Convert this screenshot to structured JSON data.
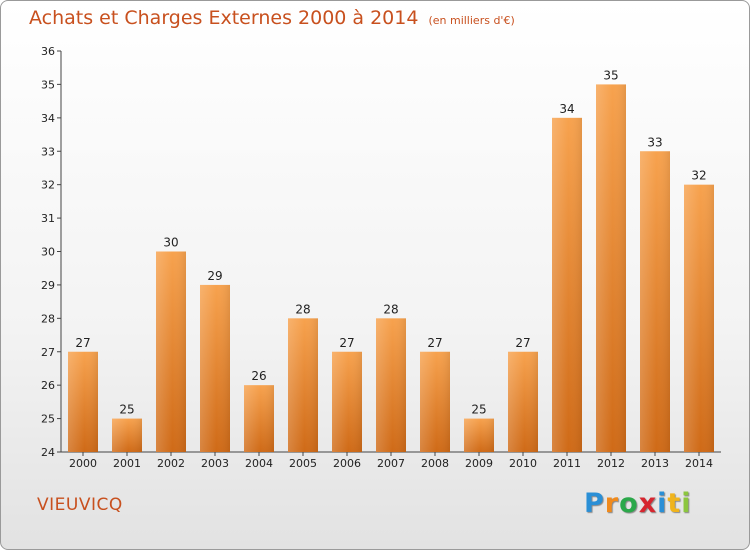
{
  "header": {
    "title": "Achats et Charges Externes 2000 à 2014",
    "unit": "(en milliers d'€)"
  },
  "commune": "VIEUVICQ",
  "logo": {
    "letters": [
      "P",
      "r",
      "o",
      "x",
      "i",
      "t",
      "i"
    ],
    "colors": [
      "#2a8fd6",
      "#f08a1c",
      "#2ba84a",
      "#d6262f",
      "#2a8fd6",
      "#f0b41c",
      "#8cc63f"
    ]
  },
  "chart_data": {
    "type": "bar",
    "title": "Achats et Charges Externes 2000 à 2014",
    "categories": [
      "2000",
      "2001",
      "2002",
      "2003",
      "2004",
      "2005",
      "2006",
      "2007",
      "2008",
      "2009",
      "2010",
      "2011",
      "2012",
      "2013",
      "2014"
    ],
    "values": [
      27,
      25,
      30,
      29,
      26,
      28,
      27,
      28,
      27,
      25,
      27,
      34,
      35,
      33,
      32
    ],
    "ylim": [
      24,
      36
    ],
    "yticks": [
      "24",
      "25",
      "26",
      "27",
      "28",
      "29",
      "30",
      "31",
      "32",
      "33",
      "34",
      "35",
      "36"
    ],
    "grid": false,
    "bar_color_top": "#f7a24e",
    "bar_color_bottom": "#cf6a17"
  }
}
